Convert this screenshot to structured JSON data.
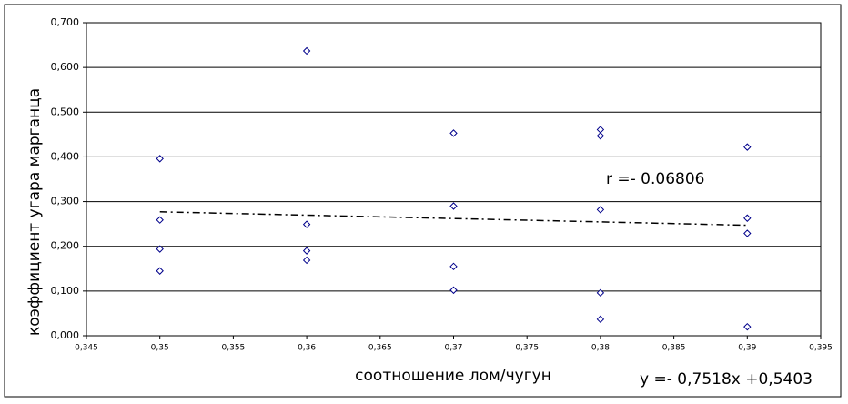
{
  "chart_data": {
    "type": "scatter",
    "x_label": "соотношение лом/чугун",
    "y_label": "коэффициент угара марганца",
    "x": [
      0.35,
      0.35,
      0.35,
      0.35,
      0.36,
      0.36,
      0.36,
      0.36,
      0.37,
      0.37,
      0.37,
      0.37,
      0.38,
      0.38,
      0.38,
      0.38,
      0.38,
      0.39,
      0.39,
      0.39,
      0.39
    ],
    "values": [
      0.396,
      0.259,
      0.194,
      0.145,
      0.637,
      0.249,
      0.19,
      0.169,
      0.453,
      0.29,
      0.155,
      0.102,
      0.461,
      0.447,
      0.282,
      0.096,
      0.037,
      0.422,
      0.263,
      0.229,
      0.02
    ],
    "color": "#00008b",
    "xlim": [
      0.345,
      0.395
    ],
    "xticks": [
      {
        "value": 0.345,
        "label": "0,345"
      },
      {
        "value": 0.35,
        "label": "0,35"
      },
      {
        "value": 0.355,
        "label": "0,355"
      },
      {
        "value": 0.36,
        "label": "0,36"
      },
      {
        "value": 0.365,
        "label": "0,365"
      },
      {
        "value": 0.37,
        "label": "0,37"
      },
      {
        "value": 0.375,
        "label": "0,375"
      },
      {
        "value": 0.38,
        "label": "0,38"
      },
      {
        "value": 0.385,
        "label": "0,385"
      },
      {
        "value": 0.39,
        "label": "0,39"
      },
      {
        "value": 0.395,
        "label": "0,395"
      }
    ],
    "ylim": [
      0,
      0.7
    ],
    "yticks": [
      {
        "value": 0,
        "label": "0,000"
      },
      {
        "value": 0.1,
        "label": "0,100"
      },
      {
        "value": 0.2,
        "label": "0,200"
      },
      {
        "value": 0.3,
        "label": "0,300"
      },
      {
        "value": 0.4,
        "label": "0,400"
      },
      {
        "value": 0.5,
        "label": "0,500"
      },
      {
        "value": 0.6,
        "label": "0,600"
      },
      {
        "value": 0.7,
        "label": "0,700"
      }
    ],
    "grid": true,
    "trendline": {
      "label": "y =- 0,7518x +0,5403",
      "slope": -0.7518,
      "intercept": 0.5403
    },
    "annotation": "r =- 0.06806"
  }
}
